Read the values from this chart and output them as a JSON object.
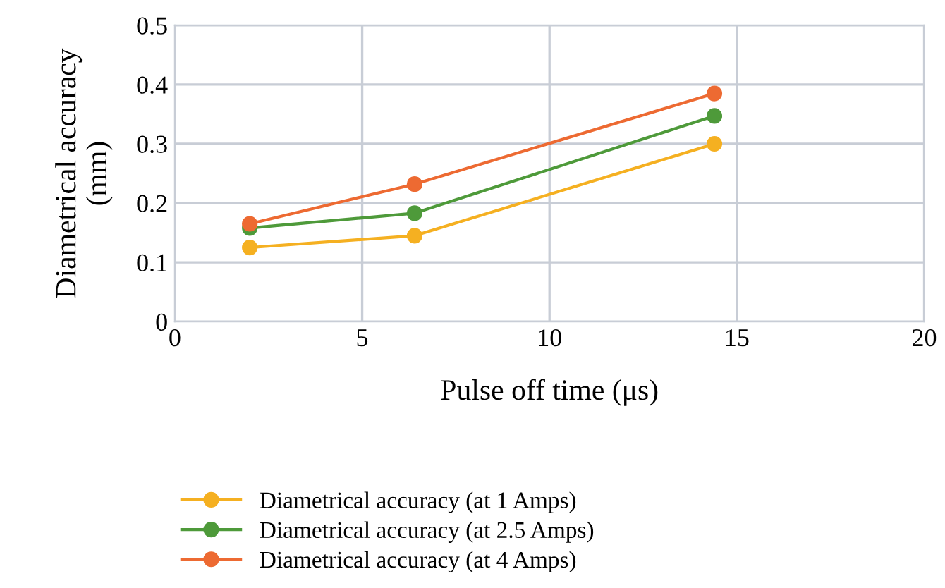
{
  "chart_data": {
    "type": "line",
    "xlabel": "Pulse off time (μs)",
    "ylabel": "Diametrical accuracy\n(mm)",
    "x": [
      2,
      6.4,
      14.4
    ],
    "series": [
      {
        "name": "Diametrical accuracy (at 1 Amps)",
        "color": "#f5b021",
        "values": [
          0.125,
          0.145,
          0.3
        ]
      },
      {
        "name": "Diametrical accuracy (at 2.5 Amps)",
        "color": "#4e9a3a",
        "values": [
          0.158,
          0.183,
          0.347
        ]
      },
      {
        "name": "Diametrical accuracy (at 4 Amps)",
        "color": "#ed6a32",
        "values": [
          0.165,
          0.232,
          0.385
        ]
      }
    ],
    "xlim": [
      0,
      20
    ],
    "xticks": [
      0,
      5,
      10,
      15,
      20
    ],
    "ylim": [
      0,
      0.5
    ],
    "yticks": [
      0,
      0.1,
      0.2,
      0.3,
      0.4,
      0.5
    ],
    "grid": true,
    "legend": "bottom",
    "marker": "circle",
    "line_style": "solid"
  }
}
